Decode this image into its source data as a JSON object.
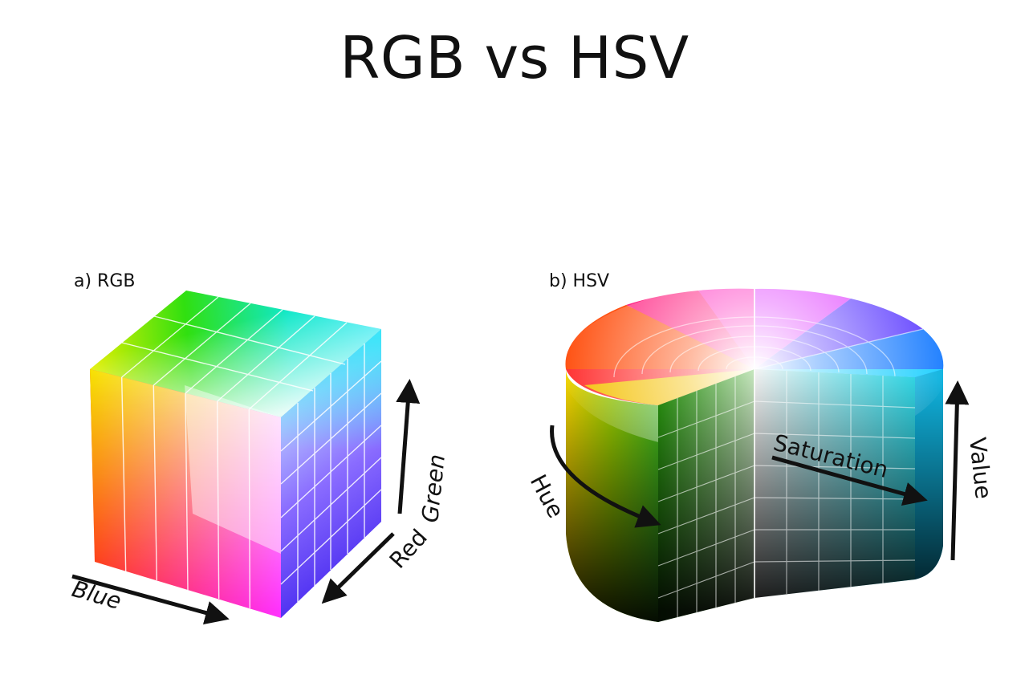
{
  "title": "RGB vs HSV",
  "rgb_panel": {
    "label": "a) RGB",
    "axes": {
      "blue": "Blue",
      "red": "Red",
      "green": "Green"
    }
  },
  "hsv_panel": {
    "label": "b) HSV",
    "axes": {
      "hue": "Hue",
      "saturation": "Saturation",
      "value": "Value"
    }
  },
  "colors": {
    "title_text": "#111111",
    "arrow": "#111111",
    "grid_line": "#ffffff"
  }
}
